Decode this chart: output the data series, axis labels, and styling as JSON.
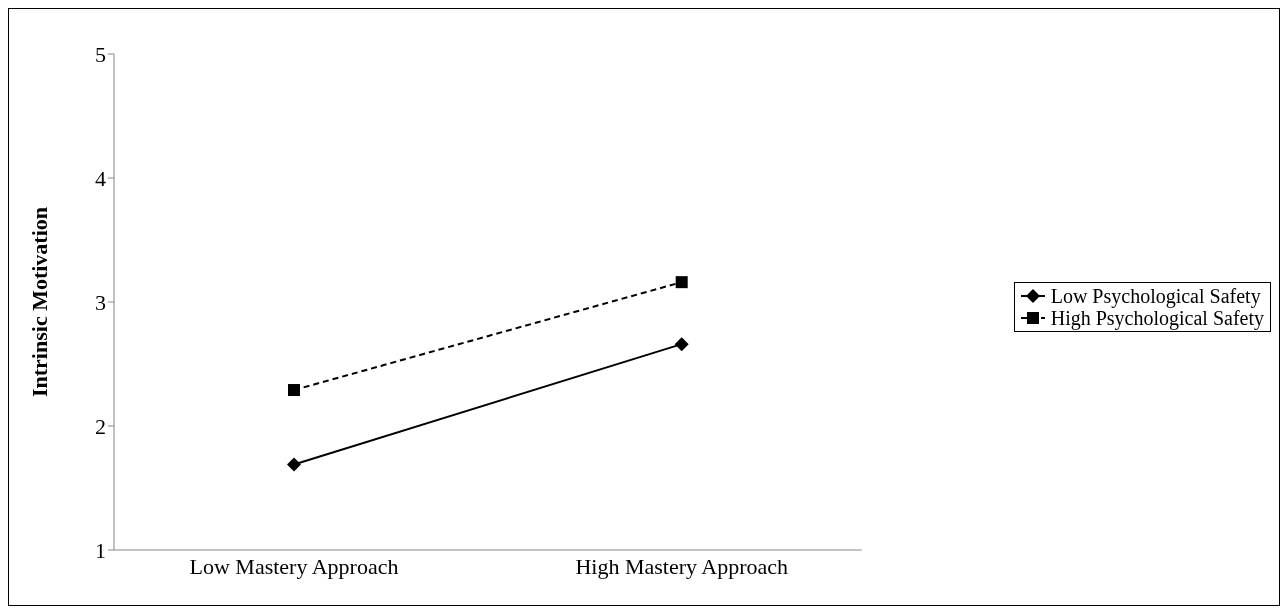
{
  "chart_data": {
    "type": "line",
    "ylabel": "Intrinsic Motivation",
    "categories": [
      "Low Mastery Approach",
      "High Mastery Approach"
    ],
    "ylim": [
      1,
      5
    ],
    "yticks": [
      1,
      2,
      3,
      4,
      5
    ],
    "grid": false,
    "legend": "right",
    "series": [
      {
        "name": "Low Psychological Safety",
        "color": "#000000",
        "values": [
          1.69,
          2.66
        ],
        "marker": "diamond",
        "line_style": "solid"
      },
      {
        "name": "High Psychological Safety",
        "color": "#000000",
        "values": [
          2.29,
          3.16
        ],
        "marker": "square",
        "line_style": "dashed"
      }
    ]
  }
}
